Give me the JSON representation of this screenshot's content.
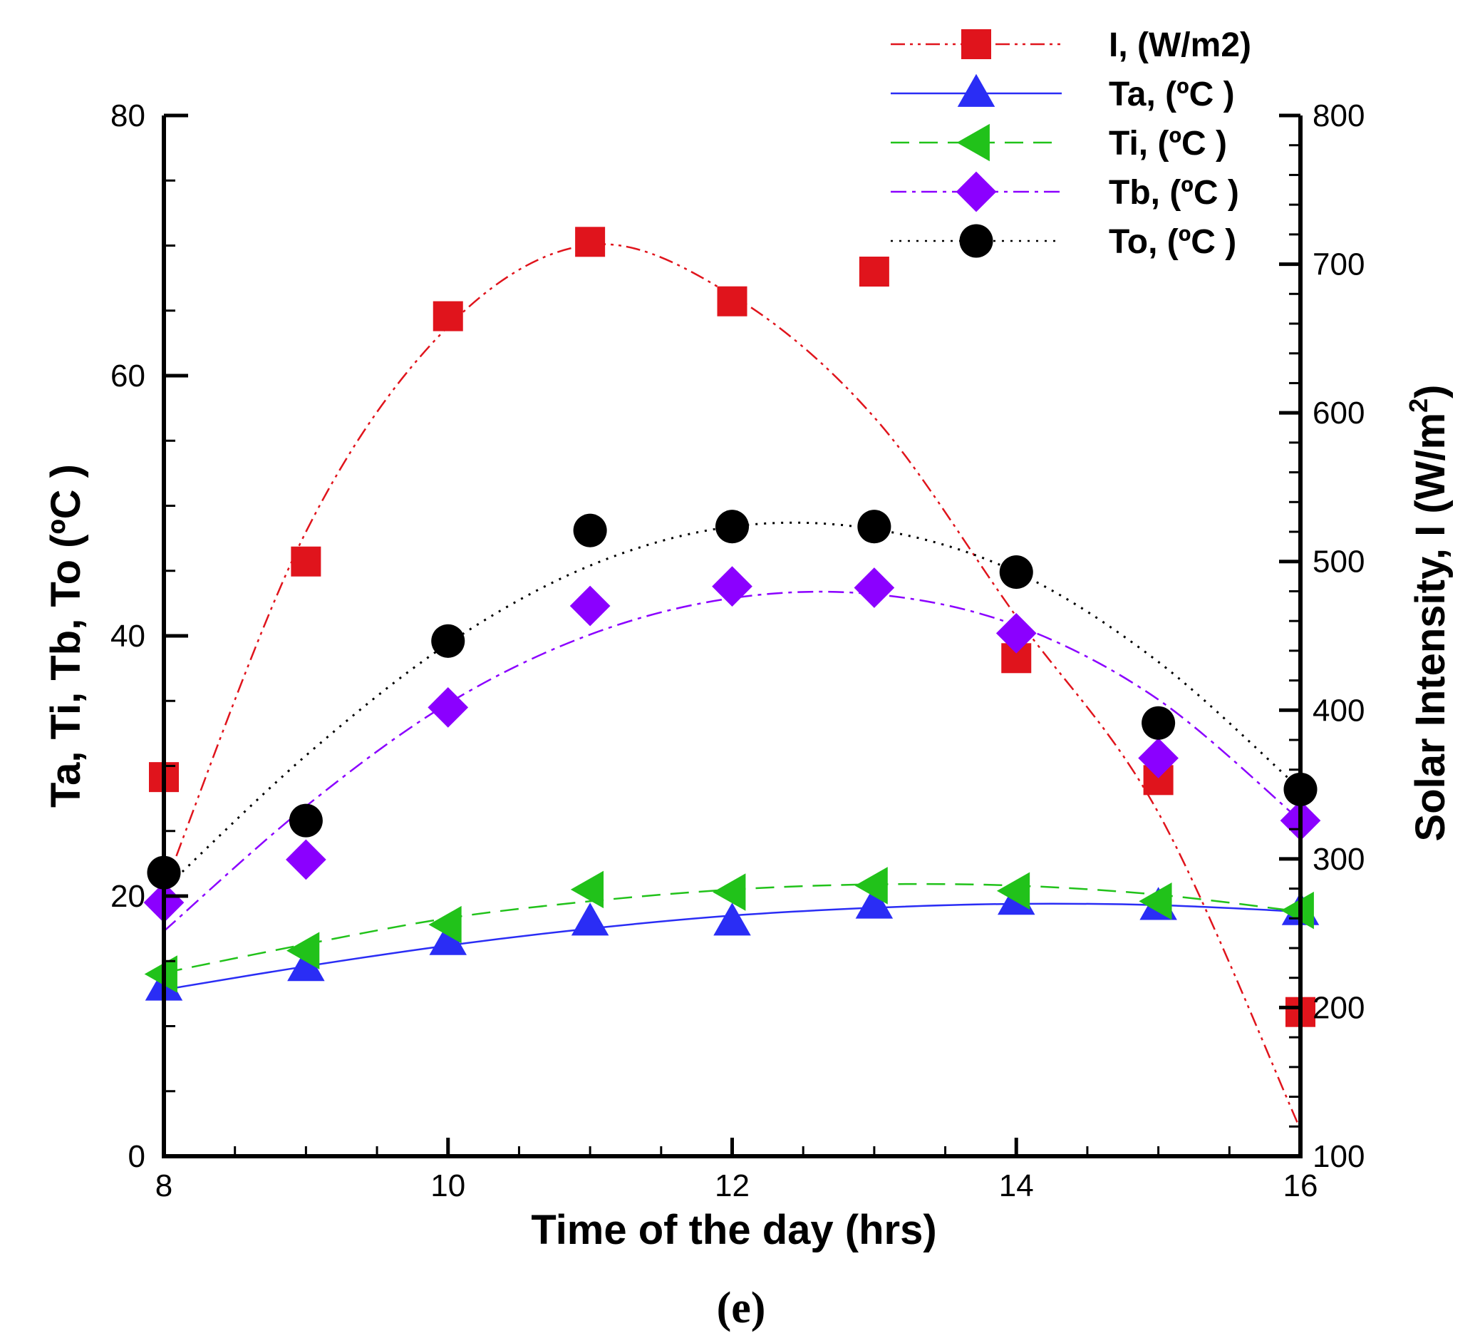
{
  "chart_data": {
    "type": "line",
    "caption": "(e)",
    "xlabel": "Time of the day (hrs)",
    "ylabel_left": "Ta, Ti, Tb, To (ºC )",
    "ylabel_right": "Solar Intensity, I (W/m",
    "ylabel_right_sup": "2",
    "ylabel_right_close": ")",
    "xlim": [
      8,
      16
    ],
    "ylim_left": [
      0,
      80
    ],
    "ylim_right": [
      100,
      800
    ],
    "x_ticks": [
      "8",
      "10",
      "12",
      "14",
      "16"
    ],
    "y_left_ticks": [
      "0",
      "20",
      "40",
      "60",
      "80"
    ],
    "y_right_ticks": [
      "100",
      "200",
      "300",
      "400",
      "500",
      "600",
      "700",
      "800"
    ],
    "x": [
      8,
      9,
      10,
      11,
      12,
      13,
      14,
      15,
      16
    ],
    "series": [
      {
        "name": "I, (W/m2)",
        "axis": "right",
        "color": "#e0141c",
        "marker": "square",
        "line": "dashdotdot",
        "values": [
          355,
          500,
          665,
          715,
          675,
          695,
          435,
          353,
          197
        ],
        "fit": [
          280,
          520,
          658,
          713,
          679,
          597,
          463,
          331,
          118
        ]
      },
      {
        "name": "Ta, (ºC )",
        "axis": "left",
        "color": "#2a2df5",
        "marker": "triangle-up",
        "line": "solid",
        "values": [
          13,
          14.5,
          16.5,
          18,
          18,
          19.3,
          19.6,
          19.2,
          18.8
        ],
        "fit": [
          12.8,
          14.6,
          16.2,
          17.5,
          18.5,
          19.1,
          19.4,
          19.3,
          18.8
        ]
      },
      {
        "name": "Ti, (ºC )",
        "axis": "left",
        "color": "#21c21a",
        "marker": "triangle-left",
        "line": "dashed",
        "values": [
          14,
          15.8,
          17.8,
          20.5,
          20.3,
          20.8,
          20.4,
          19.6,
          18.9
        ],
        "fit": [
          14.1,
          16.3,
          18.3,
          19.6,
          20.5,
          20.9,
          20.8,
          20.1,
          18.8
        ]
      },
      {
        "name": "Tb, (ºC )",
        "axis": "left",
        "color": "#8b00ff",
        "marker": "diamond",
        "line": "dashdot",
        "values": [
          19.5,
          22.8,
          34.5,
          42.3,
          43.8,
          43.7,
          40.2,
          30.6,
          25.8
        ],
        "fit": [
          17.3,
          26.9,
          34.8,
          40.1,
          42.9,
          43.2,
          40.8,
          35.1,
          25.8
        ]
      },
      {
        "name": "To, (ºC )",
        "axis": "left",
        "color": "#000000",
        "marker": "circle",
        "line": "dotted",
        "values": [
          21.8,
          25.8,
          39.6,
          48.1,
          48.4,
          48.4,
          44.9,
          33.3,
          28.2
        ],
        "fit": [
          20.5,
          30.8,
          39.4,
          45.4,
          48.4,
          48.2,
          44.9,
          38.0,
          28.2
        ]
      }
    ]
  }
}
